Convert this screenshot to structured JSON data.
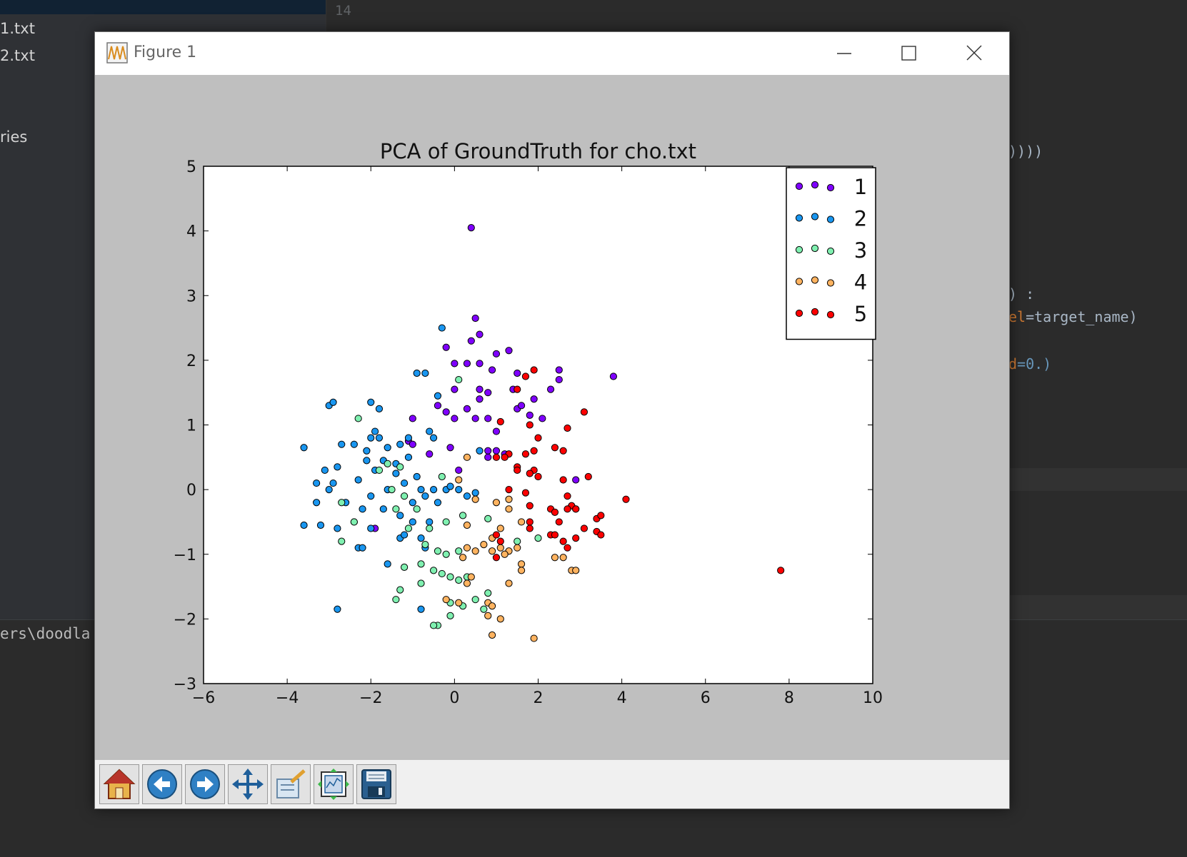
{
  "ide": {
    "files": [
      "1.txt",
      "2.txt"
    ],
    "sidebar_fragment": "ries",
    "gutter_number": "14",
    "code_fragments": {
      "line1": "))))",
      "line2": ") :",
      "line3_prefix": "el",
      "line3_rest": "=target_name)",
      "line4_prefix": "d",
      "line4_num": "=0.)"
    },
    "terminal_fragment": "ers\\doodla"
  },
  "window": {
    "title": "Figure 1",
    "minimize_icon": "minimize-icon",
    "maximize_icon": "maximize-icon",
    "close_icon": "close-icon"
  },
  "toolbar": {
    "icons": [
      "home-icon",
      "back-arrow-icon",
      "forward-arrow-icon",
      "pan-move-icon",
      "zoom-rectangle-icon",
      "subplots-config-icon",
      "save-floppy-icon"
    ]
  },
  "chart_data": {
    "type": "scatter",
    "title": "PCA of GroundTruth for cho.txt",
    "xlabel": "",
    "ylabel": "",
    "xlim": [
      -6,
      10
    ],
    "ylim": [
      -3,
      5
    ],
    "xticks": [
      -6,
      -4,
      -2,
      0,
      2,
      4,
      6,
      8,
      10
    ],
    "yticks": [
      -3,
      -2,
      -1,
      0,
      1,
      2,
      3,
      4,
      5
    ],
    "xtick_labels": [
      "−6",
      "−4",
      "−2",
      "0",
      "2",
      "4",
      "6",
      "8",
      "10"
    ],
    "ytick_labels": [
      "−3",
      "−2",
      "−1",
      "0",
      "1",
      "2",
      "3",
      "4",
      "5"
    ],
    "grid": false,
    "legend_position": "top-right",
    "series": [
      {
        "name": "1",
        "color": "#7f00ff",
        "points": [
          [
            0.4,
            4.05
          ],
          [
            0.5,
            2.65
          ],
          [
            0.6,
            2.4
          ],
          [
            0.4,
            2.3
          ],
          [
            1.3,
            2.15
          ],
          [
            1.0,
            2.1
          ],
          [
            -0.2,
            2.2
          ],
          [
            0.0,
            1.95
          ],
          [
            0.3,
            1.95
          ],
          [
            0.6,
            1.95
          ],
          [
            0.9,
            1.85
          ],
          [
            1.5,
            1.8
          ],
          [
            0.6,
            1.55
          ],
          [
            0.8,
            1.5
          ],
          [
            0.0,
            1.55
          ],
          [
            -0.4,
            1.3
          ],
          [
            0.6,
            1.4
          ],
          [
            0.3,
            1.25
          ],
          [
            -0.2,
            1.2
          ],
          [
            0.0,
            1.1
          ],
          [
            0.5,
            1.1
          ],
          [
            0.8,
            1.1
          ],
          [
            1.5,
            1.25
          ],
          [
            1.6,
            1.3
          ],
          [
            1.4,
            1.55
          ],
          [
            1.9,
            1.4
          ],
          [
            2.3,
            1.55
          ],
          [
            2.5,
            1.85
          ],
          [
            2.5,
            1.7
          ],
          [
            1.8,
            1.15
          ],
          [
            2.1,
            1.1
          ],
          [
            1.0,
            0.9
          ],
          [
            0.8,
            0.6
          ],
          [
            1.0,
            0.6
          ],
          [
            1.2,
            0.55
          ],
          [
            0.8,
            0.5
          ],
          [
            -0.6,
            0.55
          ],
          [
            -0.1,
            0.65
          ],
          [
            0.1,
            0.3
          ],
          [
            -1.1,
            0.75
          ],
          [
            -1.0,
            0.7
          ],
          [
            2.9,
            0.15
          ],
          [
            3.8,
            1.75
          ],
          [
            -1.9,
            -0.6
          ],
          [
            -1.0,
            1.1
          ]
        ]
      },
      {
        "name": "2",
        "color": "#1996f0",
        "points": [
          [
            -0.3,
            2.5
          ],
          [
            -0.7,
            1.8
          ],
          [
            -0.9,
            1.8
          ],
          [
            -0.4,
            1.45
          ],
          [
            -3.0,
            1.3
          ],
          [
            -2.9,
            1.35
          ],
          [
            -2.0,
            1.35
          ],
          [
            -1.8,
            1.25
          ],
          [
            -1.8,
            0.8
          ],
          [
            -2.0,
            0.8
          ],
          [
            -1.9,
            0.9
          ],
          [
            -2.1,
            0.6
          ],
          [
            -2.4,
            0.7
          ],
          [
            -2.7,
            0.7
          ],
          [
            -1.6,
            0.65
          ],
          [
            -1.3,
            0.7
          ],
          [
            -1.1,
            0.8
          ],
          [
            -0.6,
            0.9
          ],
          [
            -0.5,
            0.8
          ],
          [
            -3.6,
            0.65
          ],
          [
            -2.1,
            0.45
          ],
          [
            -1.7,
            0.45
          ],
          [
            -1.4,
            0.4
          ],
          [
            -1.1,
            0.5
          ],
          [
            -2.8,
            0.35
          ],
          [
            -3.1,
            0.3
          ],
          [
            -2.3,
            0.15
          ],
          [
            -2.9,
            0.1
          ],
          [
            -3.3,
            0.1
          ],
          [
            -1.9,
            0.3
          ],
          [
            -1.4,
            0.25
          ],
          [
            -1.2,
            0.1
          ],
          [
            -0.9,
            0.2
          ],
          [
            -0.8,
            0.0
          ],
          [
            -0.5,
            0.0
          ],
          [
            -0.2,
            0.0
          ],
          [
            -3.0,
            0.0
          ],
          [
            -2.6,
            -0.2
          ],
          [
            -2.0,
            -0.1
          ],
          [
            -1.6,
            0.0
          ],
          [
            -1.0,
            -0.2
          ],
          [
            -0.7,
            -0.1
          ],
          [
            -0.4,
            -0.2
          ],
          [
            -3.3,
            -0.2
          ],
          [
            -2.2,
            -0.3
          ],
          [
            -1.7,
            -0.3
          ],
          [
            -1.3,
            -0.4
          ],
          [
            -1.0,
            -0.5
          ],
          [
            -0.6,
            -0.5
          ],
          [
            -3.6,
            -0.55
          ],
          [
            -3.2,
            -0.55
          ],
          [
            -2.8,
            -0.6
          ],
          [
            -2.4,
            -0.5
          ],
          [
            -2.0,
            -0.6
          ],
          [
            -1.3,
            -0.75
          ],
          [
            -1.2,
            -0.7
          ],
          [
            -0.8,
            -0.75
          ],
          [
            -0.7,
            -0.9
          ],
          [
            -2.3,
            -0.9
          ],
          [
            -2.2,
            -0.9
          ],
          [
            -1.6,
            -1.15
          ],
          [
            -2.8,
            -1.85
          ],
          [
            -0.8,
            -1.85
          ],
          [
            0.1,
            0.0
          ],
          [
            0.6,
            0.6
          ],
          [
            -0.1,
            0.05
          ],
          [
            0.3,
            -0.1
          ],
          [
            0.5,
            -0.05
          ]
        ]
      },
      {
        "name": "3",
        "color": "#7ff0b0",
        "points": [
          [
            0.1,
            1.7
          ],
          [
            -2.3,
            1.1
          ],
          [
            -0.3,
            0.2
          ],
          [
            -1.6,
            0.4
          ],
          [
            -1.3,
            0.35
          ],
          [
            -1.8,
            0.3
          ],
          [
            -1.5,
            0.0
          ],
          [
            -1.2,
            -0.1
          ],
          [
            -1.4,
            -0.3
          ],
          [
            -0.9,
            -0.3
          ],
          [
            -2.7,
            -0.2
          ],
          [
            -2.4,
            -0.5
          ],
          [
            -1.1,
            -0.6
          ],
          [
            -0.6,
            -0.6
          ],
          [
            -0.2,
            -0.5
          ],
          [
            0.2,
            -0.4
          ],
          [
            0.8,
            -0.45
          ],
          [
            -0.7,
            -0.85
          ],
          [
            -0.4,
            -0.95
          ],
          [
            -0.2,
            -1.0
          ],
          [
            -0.8,
            -1.15
          ],
          [
            -0.5,
            -1.25
          ],
          [
            -0.3,
            -1.3
          ],
          [
            -0.1,
            -1.35
          ],
          [
            0.1,
            -1.4
          ],
          [
            0.3,
            -1.35
          ],
          [
            -0.8,
            -1.45
          ],
          [
            -1.2,
            -1.2
          ],
          [
            -1.3,
            -1.55
          ],
          [
            -1.4,
            -1.7
          ],
          [
            -0.1,
            -1.75
          ],
          [
            0.2,
            -1.8
          ],
          [
            0.5,
            -1.7
          ],
          [
            0.7,
            -1.85
          ],
          [
            0.8,
            -1.6
          ],
          [
            -0.1,
            -1.95
          ],
          [
            -0.4,
            -2.1
          ],
          [
            -0.5,
            -2.1
          ],
          [
            1.5,
            -0.8
          ],
          [
            2.0,
            -0.75
          ],
          [
            -2.7,
            -0.8
          ],
          [
            0.1,
            -0.95
          ]
        ]
      },
      {
        "name": "4",
        "color": "#ffb360",
        "points": [
          [
            0.3,
            0.5
          ],
          [
            0.1,
            0.15
          ],
          [
            0.5,
            -0.15
          ],
          [
            1.0,
            -0.2
          ],
          [
            1.3,
            -0.15
          ],
          [
            1.3,
            -0.3
          ],
          [
            1.6,
            -0.5
          ],
          [
            1.1,
            -0.6
          ],
          [
            0.9,
            -0.75
          ],
          [
            0.7,
            -0.85
          ],
          [
            0.5,
            -0.95
          ],
          [
            0.3,
            -0.9
          ],
          [
            0.9,
            -0.95
          ],
          [
            1.1,
            -0.9
          ],
          [
            1.3,
            -0.95
          ],
          [
            1.5,
            -0.9
          ],
          [
            1.6,
            -1.15
          ],
          [
            1.6,
            -1.25
          ],
          [
            2.4,
            -1.05
          ],
          [
            2.6,
            -1.05
          ],
          [
            2.8,
            -1.25
          ],
          [
            2.9,
            -1.25
          ],
          [
            1.3,
            -1.45
          ],
          [
            0.4,
            -1.35
          ],
          [
            0.3,
            -1.45
          ],
          [
            -0.2,
            -1.7
          ],
          [
            0.1,
            -1.75
          ],
          [
            0.8,
            -1.75
          ],
          [
            0.9,
            -1.8
          ],
          [
            0.8,
            -1.95
          ],
          [
            1.1,
            -2.0
          ],
          [
            0.9,
            -2.25
          ],
          [
            1.9,
            -2.3
          ],
          [
            2.9,
            -0.3
          ],
          [
            0.2,
            -1.05
          ],
          [
            0.3,
            -0.55
          ],
          [
            1.2,
            -1.0
          ]
        ]
      },
      {
        "name": "5",
        "color": "#ff0000",
        "points": [
          [
            1.9,
            1.85
          ],
          [
            1.7,
            1.75
          ],
          [
            1.5,
            1.55
          ],
          [
            3.1,
            1.2
          ],
          [
            2.7,
            0.95
          ],
          [
            1.8,
            1.0
          ],
          [
            1.1,
            1.05
          ],
          [
            2.0,
            0.8
          ],
          [
            2.4,
            0.65
          ],
          [
            2.6,
            0.6
          ],
          [
            1.9,
            0.6
          ],
          [
            1.7,
            0.55
          ],
          [
            1.5,
            0.35
          ],
          [
            1.3,
            0.55
          ],
          [
            1.2,
            0.5
          ],
          [
            1.0,
            0.5
          ],
          [
            1.9,
            0.3
          ],
          [
            1.8,
            0.25
          ],
          [
            2.0,
            0.2
          ],
          [
            1.5,
            0.3
          ],
          [
            2.6,
            0.15
          ],
          [
            3.2,
            0.2
          ],
          [
            1.3,
            0.0
          ],
          [
            1.7,
            -0.05
          ],
          [
            2.7,
            -0.1
          ],
          [
            2.8,
            -0.25
          ],
          [
            2.7,
            -0.3
          ],
          [
            2.9,
            -0.3
          ],
          [
            1.8,
            -0.25
          ],
          [
            2.3,
            -0.3
          ],
          [
            2.4,
            -0.35
          ],
          [
            1.8,
            -0.5
          ],
          [
            2.5,
            -0.5
          ],
          [
            3.4,
            -0.45
          ],
          [
            3.5,
            -0.4
          ],
          [
            3.4,
            -0.65
          ],
          [
            3.5,
            -0.7
          ],
          [
            3.1,
            -0.6
          ],
          [
            1.8,
            -0.6
          ],
          [
            2.3,
            -0.7
          ],
          [
            2.4,
            -0.7
          ],
          [
            2.6,
            -0.8
          ],
          [
            2.7,
            -0.9
          ],
          [
            2.9,
            -0.75
          ],
          [
            1.0,
            -0.7
          ],
          [
            1.1,
            -0.8
          ],
          [
            1.0,
            -1.05
          ],
          [
            4.1,
            -0.15
          ],
          [
            7.8,
            -1.25
          ]
        ]
      }
    ]
  }
}
